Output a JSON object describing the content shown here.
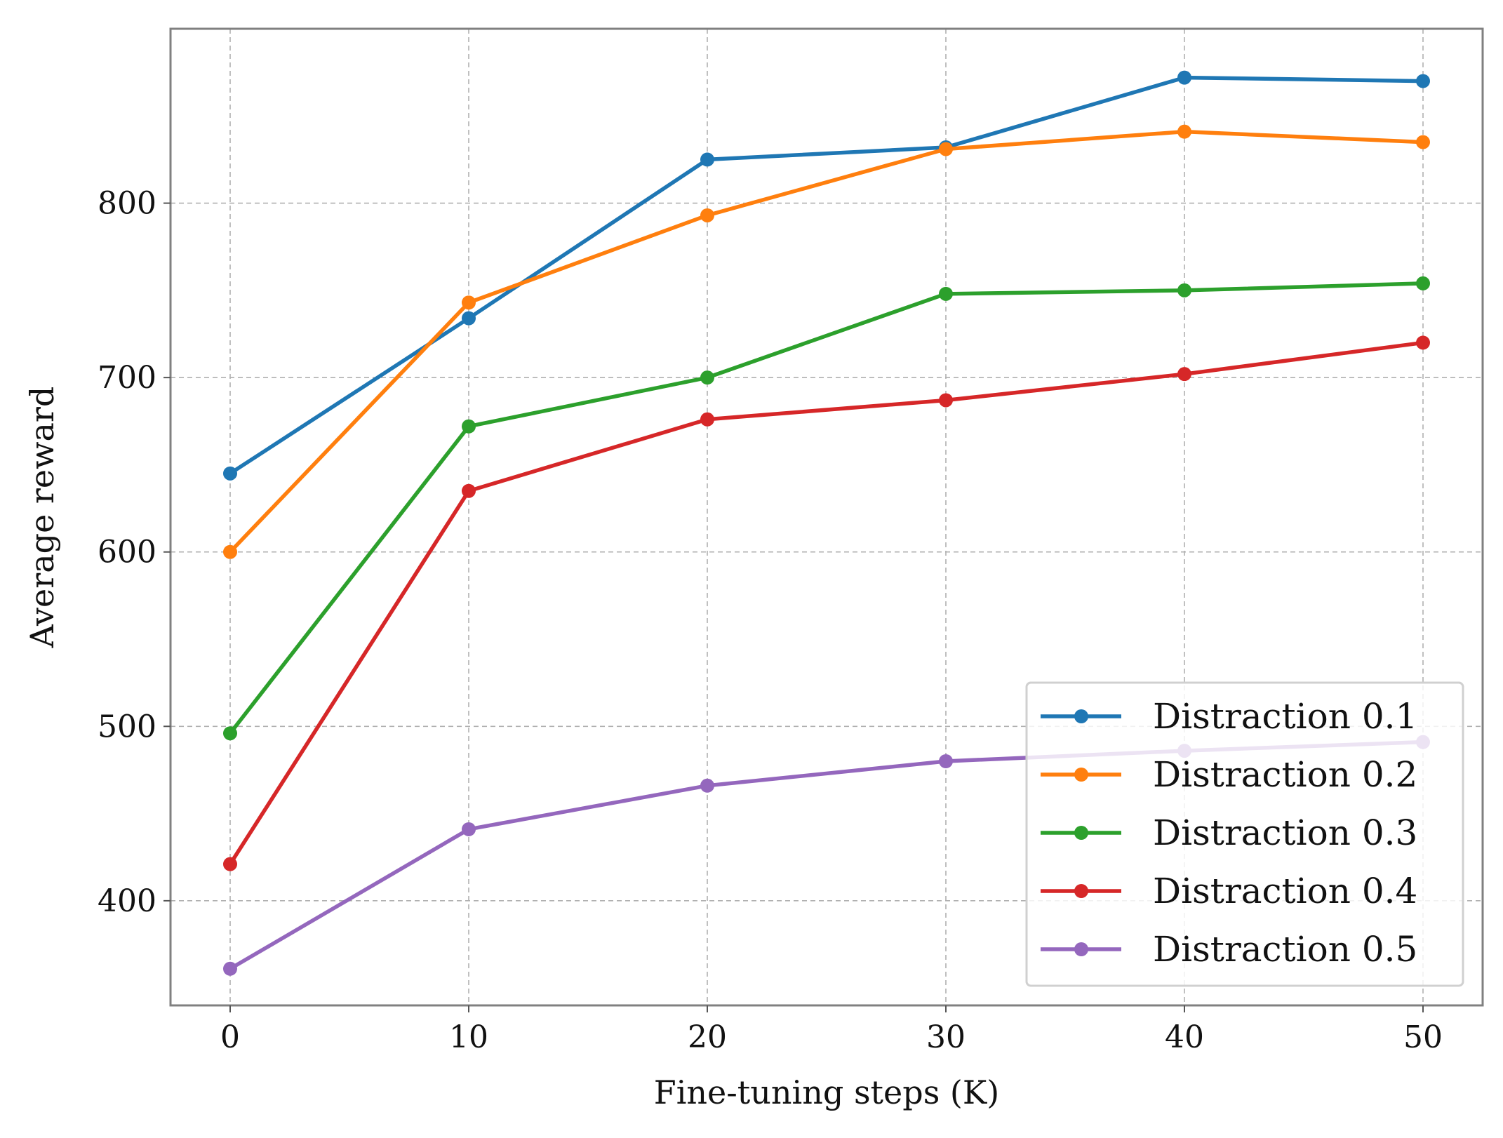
{
  "chart_data": {
    "type": "line",
    "title": "",
    "xlabel": "Fine-tuning steps (K)",
    "ylabel": "Average reward",
    "x": [
      0,
      10,
      20,
      30,
      40,
      50
    ],
    "xlim": [
      -2.5,
      52.5
    ],
    "ylim": [
      340,
      900
    ],
    "xticks": [
      0,
      10,
      20,
      30,
      40,
      50
    ],
    "yticks": [
      400,
      500,
      600,
      700,
      800
    ],
    "xtick_labels": [
      "0",
      "10",
      "20",
      "30",
      "40",
      "50"
    ],
    "ytick_labels": [
      "400",
      "500",
      "600",
      "700",
      "800"
    ],
    "grid": true,
    "legend_position": "lower-right",
    "series": [
      {
        "name": "Distraction 0.1",
        "color": "#1f77b4",
        "values": [
          645,
          734,
          825,
          832,
          872,
          870
        ]
      },
      {
        "name": "Distraction 0.2",
        "color": "#ff7f0e",
        "values": [
          600,
          743,
          793,
          831,
          841,
          835
        ]
      },
      {
        "name": "Distraction 0.3",
        "color": "#2ca02c",
        "values": [
          496,
          672,
          700,
          748,
          750,
          754
        ]
      },
      {
        "name": "Distraction 0.4",
        "color": "#d62728",
        "values": [
          421,
          635,
          676,
          687,
          702,
          720
        ]
      },
      {
        "name": "Distraction 0.5",
        "color": "#9467bd",
        "values": [
          361,
          441,
          466,
          480,
          486,
          491
        ]
      }
    ]
  }
}
